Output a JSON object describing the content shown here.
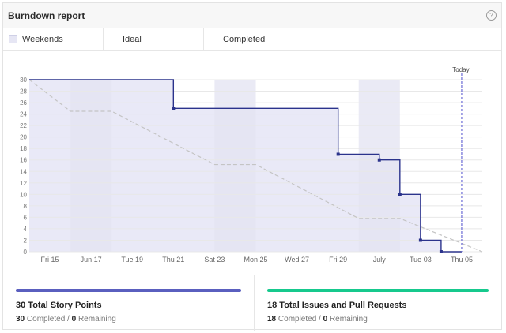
{
  "header": {
    "title": "Burndown report",
    "help_icon": "question-circle-icon"
  },
  "legend": {
    "weekends": "Weekends",
    "ideal": "Ideal",
    "completed": "Completed"
  },
  "colors": {
    "completed_line": "#2b338c",
    "completed_fill": "#e9e9f7",
    "weekend_band": "#e3e3f1",
    "ideal_line": "#c4c4c4",
    "today_line": "#6b6bd6",
    "story_points_bar": "#5a5fbf",
    "issues_bar": "#16c98d"
  },
  "chart_data": {
    "type": "line",
    "title": "Burndown report",
    "today_label": "Today",
    "ylim": [
      0,
      30
    ],
    "yticks": [
      0,
      2,
      4,
      6,
      8,
      10,
      12,
      14,
      16,
      18,
      20,
      22,
      24,
      26,
      28,
      30
    ],
    "xlim": [
      0,
      22
    ],
    "xticks": [
      {
        "x": 1,
        "label": "Fri 15"
      },
      {
        "x": 3,
        "label": "Jun 17"
      },
      {
        "x": 5,
        "label": "Tue 19"
      },
      {
        "x": 7,
        "label": "Thu 21"
      },
      {
        "x": 9,
        "label": "Sat 23"
      },
      {
        "x": 11,
        "label": "Mon 25"
      },
      {
        "x": 13,
        "label": "Wed 27"
      },
      {
        "x": 15,
        "label": "Fri 29"
      },
      {
        "x": 17,
        "label": "July"
      },
      {
        "x": 19,
        "label": "Tue 03"
      },
      {
        "x": 21,
        "label": "Thu 05"
      }
    ],
    "weekends": [
      [
        2,
        4
      ],
      [
        9,
        11
      ],
      [
        16,
        18
      ]
    ],
    "today_x": 21,
    "series": [
      {
        "name": "Ideal",
        "style": "dashed",
        "points": [
          [
            0,
            30
          ],
          [
            2,
            24.5
          ],
          [
            4,
            24.5
          ],
          [
            9,
            15.2
          ],
          [
            11,
            15.2
          ],
          [
            16,
            5.8
          ],
          [
            18,
            5.8
          ],
          [
            22,
            0
          ]
        ]
      },
      {
        "name": "Completed",
        "style": "step",
        "points": [
          [
            0,
            30
          ],
          [
            7,
            30
          ],
          [
            7,
            25
          ],
          [
            15,
            25
          ],
          [
            15,
            17
          ],
          [
            17,
            17
          ],
          [
            17,
            16
          ],
          [
            18,
            16
          ],
          [
            18,
            10
          ],
          [
            19,
            10
          ],
          [
            19,
            2
          ],
          [
            20,
            2
          ],
          [
            20,
            0
          ],
          [
            21,
            0
          ]
        ],
        "markers": [
          [
            7,
            25
          ],
          [
            15,
            17
          ],
          [
            17,
            16
          ],
          [
            18,
            10
          ],
          [
            19,
            2
          ],
          [
            20,
            0
          ]
        ]
      }
    ]
  },
  "summary": {
    "story_points": {
      "title": "30 Total Story Points",
      "completed": "30",
      "completed_label": "Completed",
      "separator": "/",
      "remaining": "0",
      "remaining_label": "Remaining"
    },
    "issues": {
      "title": "18 Total Issues and Pull Requests",
      "completed": "18",
      "completed_label": "Completed",
      "separator": "/",
      "remaining": "0",
      "remaining_label": "Remaining"
    }
  }
}
